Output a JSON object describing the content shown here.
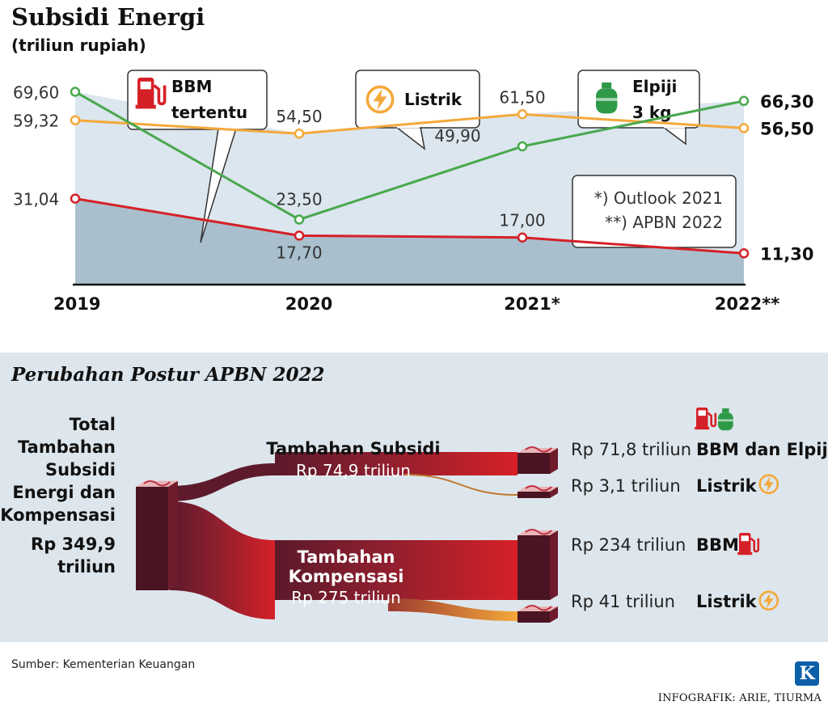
{
  "header": {
    "title": "Subsidi Energi",
    "subtitle": "(triliun rupiah)"
  },
  "chart_data": [
    {
      "type": "line",
      "x": [
        "2019",
        "2020",
        "2021*",
        "2022**"
      ],
      "series": [
        {
          "name": "BBM tertentu",
          "color": "#d62027",
          "values": [
            31.04,
            17.7,
            17.0,
            11.3
          ],
          "labels": [
            "31,04",
            "17,70",
            "17,00",
            "11,30"
          ],
          "icon": "fuel-pump-icon"
        },
        {
          "name": "Listrik",
          "color": "#f4a83a",
          "values": [
            59.32,
            54.5,
            61.5,
            56.5
          ],
          "labels": [
            "59,32",
            "54,50",
            "61,50",
            "56,50"
          ],
          "icon": "lightning-icon"
        },
        {
          "name": "Elpiji 3 kg",
          "color": "#4aa84e",
          "values": [
            69.6,
            23.5,
            49.9,
            66.3
          ],
          "labels": [
            "69,60",
            "23,50",
            "49,90",
            "66,30"
          ],
          "icon": "gas-cylinder-icon"
        }
      ],
      "ylim": [
        0,
        75
      ],
      "grid": false,
      "legend": "callouts",
      "notes": [
        "*) Outlook 2021",
        "**) APBN 2022"
      ]
    },
    {
      "type": "sankey",
      "title": "Perubahan Postur APBN 2022",
      "source": {
        "label_lines": [
          "Total",
          "Tambahan",
          "Subsidi",
          "Energi dan",
          "Kompensasi",
          "Rp 349,9",
          "triliun"
        ],
        "value": 349.9
      },
      "groups": [
        {
          "label": "Tambahan Subsidi",
          "amount_label": "Rp 74,9 triliun",
          "value": 74.9,
          "targets": [
            {
              "amount_label": "Rp 71,8 triliun",
              "value": 71.8,
              "category": "BBM dan Elpiji",
              "icons": [
                "fuel-pump-icon",
                "gas-cylinder-icon"
              ]
            },
            {
              "amount_label": "Rp 3,1 triliun",
              "value": 3.1,
              "category": "Listrik",
              "icons": [
                "lightning-icon"
              ]
            }
          ]
        },
        {
          "label_lines": [
            "Tambahan",
            "Kompensasi"
          ],
          "amount_label": "Rp 275 triliun",
          "value": 275,
          "targets": [
            {
              "amount_label": "Rp 234 triliun",
              "value": 234,
              "category": "BBM",
              "icons": [
                "fuel-pump-icon"
              ]
            },
            {
              "amount_label": "Rp 41 triliun",
              "value": 41,
              "category": "Listrik",
              "icons": [
                "lightning-icon"
              ]
            }
          ]
        }
      ],
      "colors": {
        "flow_dark": "#5c1a2b",
        "flow_bright": "#d62027",
        "flow_listrik": "#f4a83a"
      }
    }
  ],
  "footer": {
    "source": "Sumber: Kementerian Keuangan",
    "logo_letter": "K",
    "credit": "INFOGRAFIK: ARIE, TIURMA"
  }
}
